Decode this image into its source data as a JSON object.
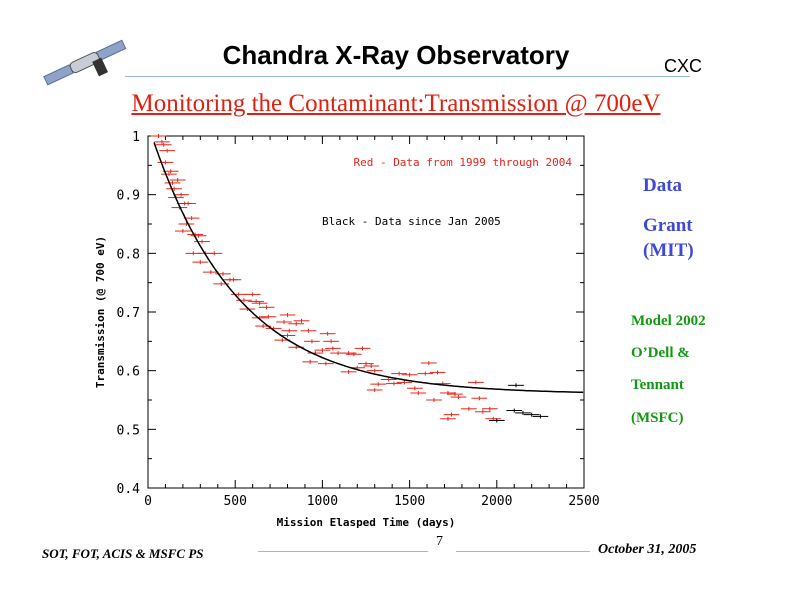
{
  "header": {
    "title": "Chandra X-Ray Observatory",
    "org": "CXC",
    "logo_icon": "satellite-icon"
  },
  "slide": {
    "subtitle": "Monitoring the Contaminant:Transmission @ 700eV"
  },
  "side": {
    "data_label": "Data",
    "data_author": "Grant",
    "data_inst": "(MIT)",
    "model_label": "Model 2002",
    "model_author1": "O’Dell &",
    "model_author2": "Tennant",
    "model_inst": "(MSFC)",
    "colors": {
      "blue": "#3f49d8",
      "green": "#119a11"
    }
  },
  "footer": {
    "left": "SOT, FOT, ACIS & MSFC PS",
    "page": "7",
    "date": "October 31, 2005"
  },
  "chart_data": {
    "type": "scatter",
    "xlabel": "Mission Elasped Time (days)",
    "ylabel": "Transmission (@ 700 eV)",
    "xlim": [
      0,
      2500
    ],
    "ylim": [
      0.4,
      1.0
    ],
    "xticks": [
      "0",
      "500",
      "1000",
      "1500",
      "2000",
      "2500"
    ],
    "yticks": [
      "0.4",
      "0.5",
      "0.6",
      "0.7",
      "0.8",
      "0.9",
      "1"
    ],
    "annotations": [
      "Red - Data from 1999 through 2004",
      "Black - Data since Jan 2005"
    ],
    "x_error_days": 45,
    "series": [
      {
        "name": "Data from 1999 through 2004",
        "color": "#e8241a",
        "points": [
          [
            60,
            1.0
          ],
          [
            90,
            0.985
          ],
          [
            110,
            0.975
          ],
          [
            80,
            0.99
          ],
          [
            100,
            0.955
          ],
          [
            130,
            0.94
          ],
          [
            120,
            0.935
          ],
          [
            140,
            0.92
          ],
          [
            150,
            0.91
          ],
          [
            170,
            0.925
          ],
          [
            190,
            0.9
          ],
          [
            160,
            0.895
          ],
          [
            210,
            0.885
          ],
          [
            230,
            0.885
          ],
          [
            180,
            0.878
          ],
          [
            250,
            0.86
          ],
          [
            220,
            0.85
          ],
          [
            200,
            0.838
          ],
          [
            270,
            0.832
          ],
          [
            290,
            0.83
          ],
          [
            310,
            0.82
          ],
          [
            260,
            0.8
          ],
          [
            330,
            0.8
          ],
          [
            380,
            0.8
          ],
          [
            300,
            0.785
          ],
          [
            360,
            0.768
          ],
          [
            430,
            0.765
          ],
          [
            420,
            0.748
          ],
          [
            470,
            0.755
          ],
          [
            490,
            0.755
          ],
          [
            520,
            0.73
          ],
          [
            550,
            0.72
          ],
          [
            570,
            0.705
          ],
          [
            600,
            0.73
          ],
          [
            620,
            0.718
          ],
          [
            640,
            0.715
          ],
          [
            680,
            0.708
          ],
          [
            640,
            0.69
          ],
          [
            690,
            0.692
          ],
          [
            660,
            0.676
          ],
          [
            720,
            0.672
          ],
          [
            780,
            0.683
          ],
          [
            800,
            0.695
          ],
          [
            810,
            0.668
          ],
          [
            850,
            0.68
          ],
          [
            880,
            0.685
          ],
          [
            770,
            0.652
          ],
          [
            800,
            0.66
          ],
          [
            850,
            0.64
          ],
          [
            920,
            0.668
          ],
          [
            940,
            0.65
          ],
          [
            960,
            0.63
          ],
          [
            1000,
            0.635
          ],
          [
            1030,
            0.663
          ],
          [
            1050,
            0.65
          ],
          [
            1060,
            0.638
          ],
          [
            1090,
            0.63
          ],
          [
            1020,
            0.612
          ],
          [
            930,
            0.615
          ],
          [
            1150,
            0.63
          ],
          [
            1180,
            0.628
          ],
          [
            1230,
            0.638
          ],
          [
            1200,
            0.605
          ],
          [
            1250,
            0.612
          ],
          [
            1280,
            0.608
          ],
          [
            1150,
            0.598
          ],
          [
            1300,
            0.6
          ],
          [
            1320,
            0.577
          ],
          [
            1300,
            0.567
          ],
          [
            1380,
            0.585
          ],
          [
            1410,
            0.578
          ],
          [
            1440,
            0.595
          ],
          [
            1470,
            0.58
          ],
          [
            1500,
            0.593
          ],
          [
            1530,
            0.57
          ],
          [
            1550,
            0.562
          ],
          [
            1610,
            0.613
          ],
          [
            1590,
            0.595
          ],
          [
            1660,
            0.597
          ],
          [
            1640,
            0.55
          ],
          [
            1690,
            0.578
          ],
          [
            1720,
            0.562
          ],
          [
            1760,
            0.56
          ],
          [
            1780,
            0.555
          ],
          [
            1740,
            0.525
          ],
          [
            1720,
            0.518
          ],
          [
            1840,
            0.535
          ],
          [
            1880,
            0.58
          ],
          [
            1900,
            0.553
          ],
          [
            1920,
            0.53
          ],
          [
            1960,
            0.535
          ],
          [
            1980,
            0.518
          ]
        ]
      },
      {
        "name": "Data since Jan 2005",
        "color": "#000000",
        "points": [
          [
            2000,
            0.515
          ],
          [
            2100,
            0.532
          ],
          [
            2150,
            0.528
          ],
          [
            2200,
            0.525
          ],
          [
            2250,
            0.522
          ],
          [
            2110,
            0.575
          ]
        ]
      },
      {
        "name": "Model 2002 O'Dell & Tennant",
        "type": "line",
        "color": "#000000",
        "model": {
          "asymptote": 0.56,
          "amplitude": 0.46,
          "tau_days": 500
        }
      }
    ]
  }
}
